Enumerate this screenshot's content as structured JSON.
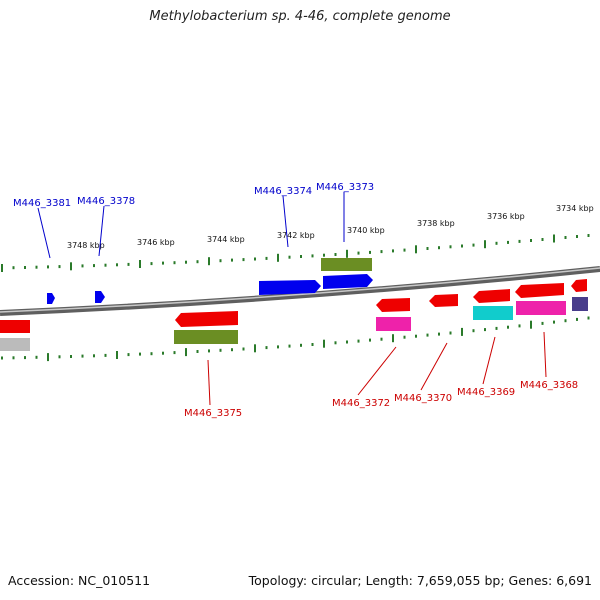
{
  "title": "Methylobacterium sp. 4-46, complete genome",
  "footer": {
    "accession": "Accession: NC_010511",
    "summary": "Topology: circular; Length: 7,659,055 bp; Genes: 6,691"
  },
  "ticks": {
    "kbp_labels": [
      "3748 kbp",
      "3746 kbp",
      "3744 kbp",
      "3742 kbp",
      "3740 kbp",
      "3738 kbp",
      "3736 kbp",
      "3734 kbp"
    ]
  },
  "genes": {
    "forward_labels": [
      "M446_3381",
      "M446_3378",
      "M446_3374",
      "M446_3373"
    ],
    "reverse_labels": [
      "M446_3375",
      "M446_3372",
      "M446_3370",
      "M446_3369",
      "M446_3368"
    ]
  },
  "colors": {
    "forward_label": "#0000cc",
    "reverse_label": "#cc0000",
    "tick": "#2a7a2a",
    "backbone": "#888888",
    "blue_gene": "#0000ee",
    "red_gene": "#ee0000",
    "olive_gene": "#6b8e23",
    "magenta_gene": "#ee22aa",
    "cyan_gene": "#11cccc",
    "gray_gene": "#bbbbbb",
    "purple_gene": "#483d8b"
  }
}
